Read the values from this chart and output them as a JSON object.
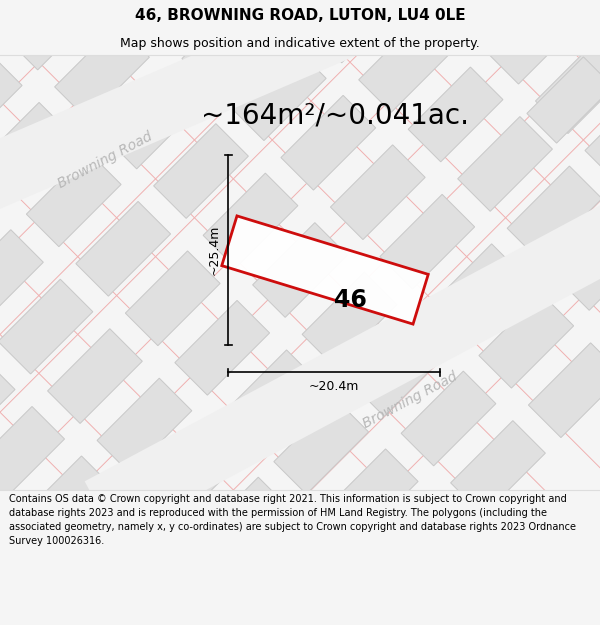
{
  "title": "46, BROWNING ROAD, LUTON, LU4 0LE",
  "subtitle": "Map shows position and indicative extent of the property.",
  "area_text": "~164m²/~0.041ac.",
  "width_label": "~20.4m",
  "height_label": "~25.4m",
  "number_label": "46",
  "footer": "Contains OS data © Crown copyright and database right 2021. This information is subject to Crown copyright and database rights 2023 and is reproduced with the permission of HM Land Registry. The polygons (including the associated geometry, namely x, y co-ordinates) are subject to Crown copyright and database rights 2023 Ordnance Survey 100026316.",
  "bg_color": "#f5f5f5",
  "map_bg": "#ffffff",
  "plot_color": "#cc0000",
  "road_label": "Browning Road",
  "building_fill": "#e0e0e0",
  "building_stroke": "#c8c8c8",
  "road_line_color": "#f0b0b0",
  "title_fontsize": 11,
  "subtitle_fontsize": 9,
  "area_fontsize": 20,
  "footer_fontsize": 7,
  "dim_fontsize": 9,
  "num_fontsize": 17,
  "road_fontsize": 10
}
